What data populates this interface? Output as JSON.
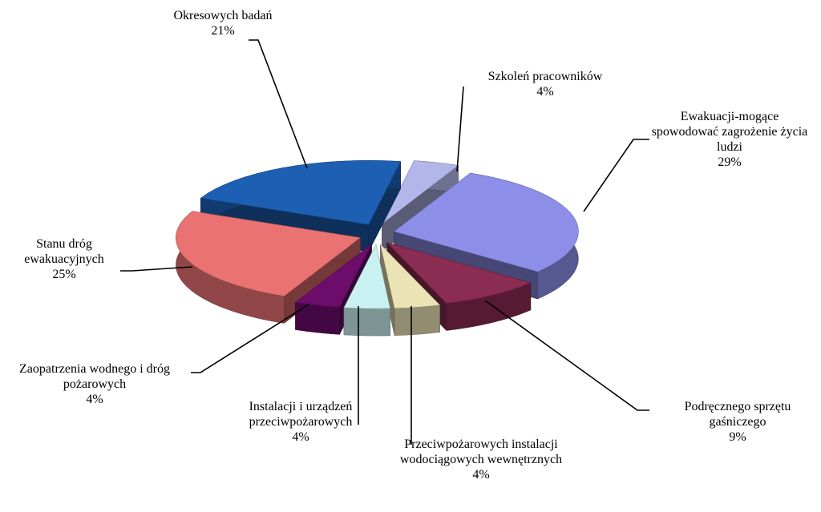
{
  "chart_data": {
    "type": "pie3d",
    "categories": [
      "Szkoleń pracowników",
      "Ewakuacji-mogące spowodować zagrożenie życia ludzi",
      "Podręcznego sprzętu gaśniczego",
      "Przeciwpożarowych instalacji wodociągowych wewnętrznych",
      "Instalacji i urządzeń przeciwpożarowych",
      "Zaopatrzenia wodnego i dróg pożarowych",
      "Stanu dróg ewakuacyjnych",
      "Okresowych badań"
    ],
    "values": [
      4,
      29,
      9,
      4,
      4,
      4,
      25,
      21
    ],
    "value_labels": [
      "4%",
      "29%",
      "9%",
      "4%",
      "4%",
      "4%",
      "25%",
      "21%"
    ],
    "colors": [
      "#b3b6ea",
      "#8c8ee8",
      "#8b2c52",
      "#ebe3b4",
      "#c9f1f1",
      "#6c0d6c",
      "#ea7272",
      "#1c5fb3"
    ]
  }
}
